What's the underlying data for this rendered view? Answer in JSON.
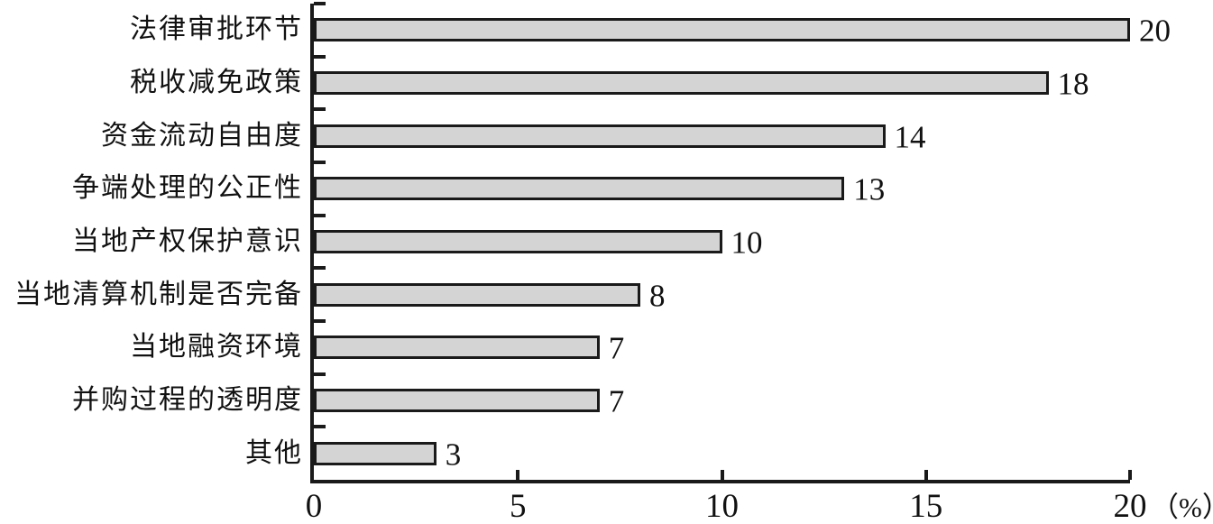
{
  "chart_data": {
    "type": "bar",
    "orientation": "horizontal",
    "title": "",
    "categories": [
      "法律审批环节",
      "税收减免政策",
      "资金流动自由度",
      "争端处理的公正性",
      "当地产权保护意识",
      "当地清算机制是否完备",
      "当地融资环境",
      "并购过程的透明度",
      "其他"
    ],
    "values": [
      20,
      18,
      14,
      13,
      10,
      8,
      7,
      7,
      3
    ],
    "data_labels_shown": true,
    "xlabel": "（%）",
    "ylabel": "",
    "x_ticks": [
      0,
      5,
      10,
      15,
      20
    ],
    "xlim": [
      0,
      20
    ],
    "legend": "none",
    "grid": false,
    "colors": {
      "bar_fill": "#d4d4d4",
      "bar_border": "#1a1a1a",
      "axis": "#1a1a1a",
      "text": "#111111",
      "background": "#ffffff"
    }
  }
}
